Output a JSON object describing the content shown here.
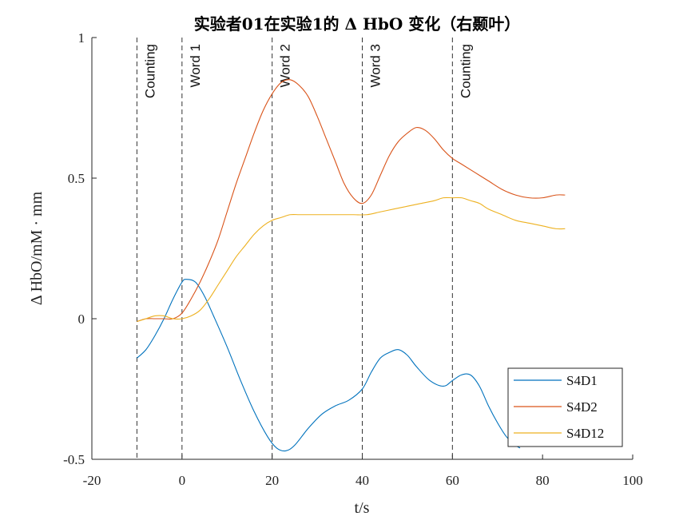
{
  "chart_data": {
    "type": "line",
    "title": "实验者01在实验1的 Δ HbO 变化（右颞叶）",
    "xlabel": "t/s",
    "ylabel": "Δ HbO/mM · mm",
    "xlim": [
      -20,
      100
    ],
    "ylim": [
      -0.5,
      1
    ],
    "xticks": [
      -20,
      0,
      20,
      40,
      60,
      80,
      100
    ],
    "yticks": [
      -0.5,
      0,
      0.5,
      1
    ],
    "ytick_labels": [
      "-0.5",
      "0",
      "0.5",
      "1"
    ],
    "grid": false,
    "legend_position": "bottom-right",
    "event_markers": [
      {
        "x": -10,
        "label": "Counting"
      },
      {
        "x": 0,
        "label": "Word 1"
      },
      {
        "x": 20,
        "label": "Word 2"
      },
      {
        "x": 40,
        "label": "Word 3"
      },
      {
        "x": 60,
        "label": "Counting"
      }
    ],
    "series": [
      {
        "name": "S4D1",
        "color": "#0072BD",
        "x": [
          -10,
          -8,
          -6,
          -4,
          -2,
          0,
          1,
          3,
          5,
          7,
          10,
          13,
          16,
          19,
          21,
          23,
          25,
          28,
          31,
          34,
          37,
          40,
          42,
          44,
          46,
          48,
          50,
          52,
          55,
          58,
          60,
          62,
          64,
          66,
          68,
          70,
          72,
          74,
          75
        ],
        "values": [
          -0.14,
          -0.11,
          -0.06,
          0.0,
          0.07,
          0.13,
          0.14,
          0.13,
          0.08,
          0.01,
          -0.1,
          -0.22,
          -0.33,
          -0.42,
          -0.46,
          -0.47,
          -0.45,
          -0.39,
          -0.34,
          -0.31,
          -0.29,
          -0.25,
          -0.19,
          -0.14,
          -0.12,
          -0.11,
          -0.13,
          -0.17,
          -0.22,
          -0.24,
          -0.22,
          -0.2,
          -0.2,
          -0.24,
          -0.31,
          -0.37,
          -0.42,
          -0.45,
          -0.46
        ]
      },
      {
        "name": "S4D2",
        "color": "#D95319",
        "x": [
          -10,
          -8,
          -6,
          -4,
          -2,
          0,
          2,
          4,
          6,
          8,
          10,
          12,
          14,
          16,
          18,
          20,
          22,
          24,
          26,
          28,
          30,
          32,
          34,
          36,
          38,
          40,
          42,
          44,
          46,
          48,
          50,
          52,
          54,
          56,
          58,
          60,
          62,
          65,
          68,
          71,
          74,
          77,
          80,
          83,
          85
        ],
        "values": [
          -0.01,
          0.0,
          0.0,
          0.0,
          0.0,
          0.02,
          0.07,
          0.13,
          0.2,
          0.28,
          0.38,
          0.48,
          0.57,
          0.66,
          0.74,
          0.8,
          0.84,
          0.85,
          0.83,
          0.79,
          0.72,
          0.64,
          0.56,
          0.48,
          0.43,
          0.41,
          0.44,
          0.51,
          0.58,
          0.63,
          0.66,
          0.68,
          0.67,
          0.64,
          0.6,
          0.57,
          0.55,
          0.52,
          0.49,
          0.46,
          0.44,
          0.43,
          0.43,
          0.44,
          0.44
        ]
      },
      {
        "name": "S4D12",
        "color": "#EDB120",
        "x": [
          -10,
          -8,
          -6,
          -4,
          -2,
          0,
          2,
          4,
          6,
          8,
          10,
          12,
          14,
          16,
          18,
          20,
          22,
          24,
          26,
          28,
          30,
          32,
          35,
          38,
          41,
          44,
          47,
          50,
          53,
          56,
          58,
          60,
          62,
          64,
          66,
          68,
          71,
          74,
          77,
          80,
          83,
          85
        ],
        "values": [
          -0.01,
          0.0,
          0.01,
          0.01,
          0.0,
          0.0,
          0.01,
          0.03,
          0.07,
          0.12,
          0.17,
          0.22,
          0.26,
          0.3,
          0.33,
          0.35,
          0.36,
          0.37,
          0.37,
          0.37,
          0.37,
          0.37,
          0.37,
          0.37,
          0.37,
          0.38,
          0.39,
          0.4,
          0.41,
          0.42,
          0.43,
          0.43,
          0.43,
          0.42,
          0.41,
          0.39,
          0.37,
          0.35,
          0.34,
          0.33,
          0.32,
          0.32
        ]
      }
    ]
  }
}
